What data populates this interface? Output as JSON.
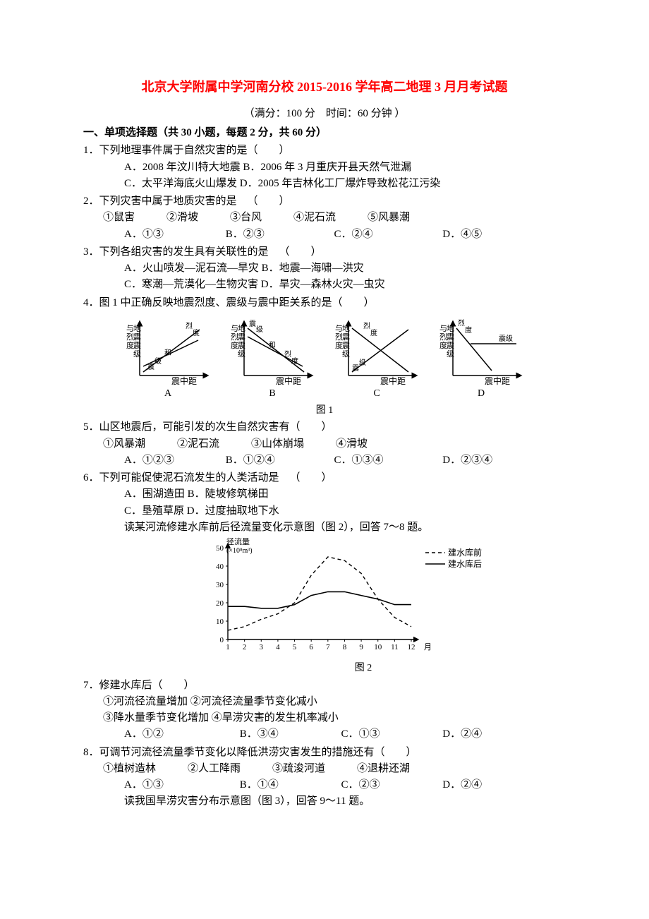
{
  "title": "北京大学附属中学河南分校 2015-2016 学年高二地理 3 月月考试题",
  "subtitle": "（满分：100 分 时间：60 分钟 ）",
  "section1_header": "一、单项选择题（共 30 小题，每题 2 分，共 60 分）",
  "q1": {
    "stem": "1．下列地理事件属于自然灾害的是（  ）",
    "A": "A．2008 年汶川特大地震",
    "B": "B．2006 年 3 月重庆开县天然气泄漏",
    "C": "C．太平洋海底火山爆发",
    "D": "D．2005 年吉林化工厂爆炸导致松花江污染"
  },
  "q2": {
    "stem": "2．下列灾害中属于地质灾害的是 （  ）",
    "list": "①鼠害   ②滑坡   ③台风   ④泥石流   ⑤风暴潮",
    "A": "A．①③",
    "B": "B．②③",
    "C": "C．②④",
    "D": "D．④⑤"
  },
  "q3": {
    "stem": "3．下列各组灾害的发生具有关联性的是 （  ）",
    "A": "A．火山喷发—泥石流—旱灾",
    "B": "B．地震—海啸—洪灾",
    "C": "C．寒潮—荒漠化—生物灾害",
    "D": "D．旱灾—森林火灾—虫灾"
  },
  "q4": {
    "stem": "4．图 1 中正确反映地震烈度、震级与震中距关系的是（  ）"
  },
  "fig1": {
    "caption": "图 1",
    "ylabel_chars": [
      "与",
      "地",
      "烈",
      "震",
      "度",
      "震",
      "级"
    ],
    "xlabel": "震中距",
    "labels_inner": {
      "a": "烈度",
      "b": "和",
      "c": "震级"
    },
    "panels": {
      "A": {
        "label": "A"
      },
      "B": {
        "label": "B"
      },
      "C": {
        "label": "C"
      },
      "D": {
        "label": "D"
      }
    },
    "stroke": "#000000",
    "fontsize": 12
  },
  "q5": {
    "stem": "5．山区地震后，可能引发的次生自然灾害有（  ）",
    "list": "①风暴潮   ②泥石流   ③山体崩塌   ④滑坡",
    "A": "A．①②③",
    "B": "B．①②④",
    "C": "C．①③④",
    "D": "D．②③④"
  },
  "q6": {
    "stem": "6．下列可能促使泥石流发生的人类活动是 （  ）",
    "A": "A．围湖造田",
    "B": "B．陡坡修筑梯田",
    "C": "C．垦殖草原",
    "D": "D．过度抽取地下水",
    "lead": "读某河流修建水库前后径流量变化示意图（图 2），回答 7～8 题。"
  },
  "fig2": {
    "type": "line",
    "caption": "图 2",
    "ylabel_line1": "径流量",
    "ylabel_line2": "(×10⁸m³)",
    "yticks": [
      0,
      10,
      20,
      30,
      40,
      50
    ],
    "xticks": [
      1,
      2,
      3,
      4,
      5,
      6,
      7,
      8,
      9,
      10,
      11,
      12
    ],
    "xlabel_suffix": "月",
    "legend_before": "建水库前",
    "legend_after": "建水库后",
    "series_before": {
      "style": "dashed",
      "color": "#000000",
      "points": [
        [
          1,
          5
        ],
        [
          2,
          7
        ],
        [
          3,
          11
        ],
        [
          4,
          14
        ],
        [
          5,
          20
        ],
        [
          6,
          35
        ],
        [
          7,
          45
        ],
        [
          8,
          43
        ],
        [
          9,
          36
        ],
        [
          10,
          22
        ],
        [
          11,
          12
        ],
        [
          12,
          7
        ]
      ]
    },
    "series_after": {
      "style": "solid",
      "color": "#000000",
      "points": [
        [
          1,
          18
        ],
        [
          2,
          18
        ],
        [
          3,
          17
        ],
        [
          4,
          17
        ],
        [
          5,
          19
        ],
        [
          6,
          24
        ],
        [
          7,
          26
        ],
        [
          8,
          26
        ],
        [
          9,
          24
        ],
        [
          10,
          22
        ],
        [
          11,
          19
        ],
        [
          12,
          19
        ]
      ]
    },
    "ylim": [
      0,
      50
    ],
    "xlim": [
      1,
      12
    ],
    "grid": false,
    "background_color": "#ffffff"
  },
  "q7": {
    "stem": "7．修建水库后（  ）",
    "l1": "①河流径流量增加",
    "l2": "②河流径流量季节变化减小",
    "l3": "③降水量季节变化增加",
    "l4": "④旱涝灾害的发生机率减小",
    "A": "A．①②",
    "B": "B．③④",
    "C": "C．①③",
    "D": "D．②④"
  },
  "q8": {
    "stem": "8．可调节河流径流量季节变化以降低洪涝灾害发生的措施还有（  ）",
    "list": "①植树造林   ②人工降雨   ③疏浚河道   ④退耕还湖",
    "A": "A．①③",
    "B": "B．①④",
    "C": "C．②③",
    "D": "D．②④",
    "lead": "读我国旱涝灾害分布示意图（图 3），回答 9～11 题。"
  }
}
